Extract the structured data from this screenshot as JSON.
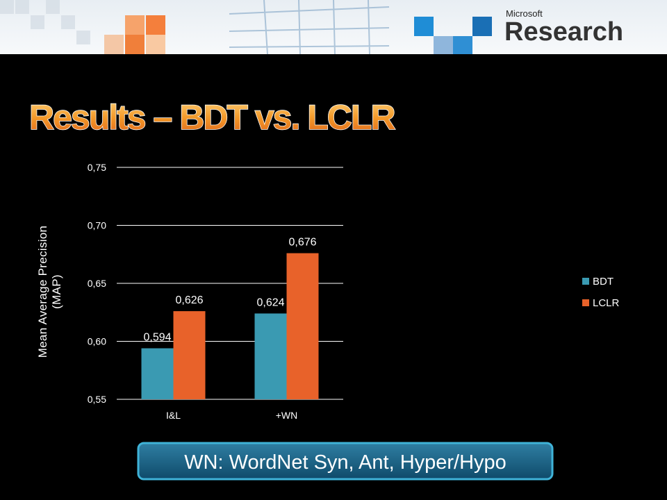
{
  "slide": {
    "logo_top": "Microsoft",
    "logo_bottom": "Research",
    "title": "Results – BDT vs. LCLR",
    "callout": "WN: WordNet Syn, Ant, Hyper/Hypo"
  },
  "chart_data": {
    "type": "bar",
    "y_label": "Mean Average Precision\n(MAP)",
    "categories": [
      "I&L",
      "+WN"
    ],
    "series": [
      {
        "name": "BDT",
        "color": "#3a9ab2",
        "values": [
          0.594,
          0.624
        ],
        "value_labels": [
          "0,594",
          "0,624"
        ]
      },
      {
        "name": "LCLR",
        "color": "#e8622a",
        "values": [
          0.626,
          0.676
        ],
        "value_labels": [
          "0,626",
          "0,676"
        ]
      }
    ],
    "ylim": [
      0.55,
      0.75
    ],
    "yticks": [
      {
        "value": 0.55,
        "label": "0,55"
      },
      {
        "value": 0.6,
        "label": "0,60"
      },
      {
        "value": 0.65,
        "label": "0,65"
      },
      {
        "value": 0.7,
        "label": "0,70"
      },
      {
        "value": 0.75,
        "label": "0,75"
      }
    ],
    "grid": true,
    "legend": "right"
  }
}
